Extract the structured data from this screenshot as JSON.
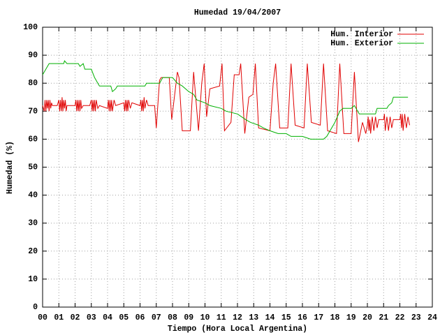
{
  "chart_data": {
    "type": "line",
    "title": "Humedad 19/04/2007",
    "x_label": "Tiempo (Hora Local Argentina)",
    "y_label": "Humedad (%)",
    "xlim": [
      0,
      24
    ],
    "ylim": [
      0,
      100
    ],
    "xticks": [
      {
        "value": 0,
        "label": "00"
      },
      {
        "value": 1,
        "label": "01"
      },
      {
        "value": 2,
        "label": "02"
      },
      {
        "value": 3,
        "label": "03"
      },
      {
        "value": 4,
        "label": "04"
      },
      {
        "value": 5,
        "label": "05"
      },
      {
        "value": 6,
        "label": "06"
      },
      {
        "value": 7,
        "label": "07"
      },
      {
        "value": 8,
        "label": "08"
      },
      {
        "value": 9,
        "label": "09"
      },
      10,
      11,
      12,
      13,
      14,
      15,
      16,
      17,
      18,
      19,
      20,
      21,
      22,
      23,
      24
    ],
    "yticks": [
      0,
      10,
      20,
      30,
      40,
      50,
      60,
      70,
      80,
      90,
      100
    ],
    "grid": true,
    "legend": "top-right",
    "series": [
      {
        "name": "Hum. Interior",
        "color": "#e00000",
        "x": [
          0,
          0.1,
          0.15,
          0.2,
          0.25,
          0.3,
          0.35,
          0.4,
          0.45,
          0.5,
          0.55,
          0.6,
          0.9,
          1,
          1.05,
          1.1,
          1.15,
          1.2,
          1.25,
          1.3,
          1.35,
          1.4,
          1.45,
          1.5,
          2,
          2.05,
          2.1,
          2.15,
          2.2,
          2.25,
          2.3,
          2.35,
          2.4,
          2.5,
          2.9,
          3,
          3.05,
          3.1,
          3.15,
          3.2,
          3.25,
          3.3,
          3.4,
          3.5,
          4,
          4.05,
          4.1,
          4.15,
          4.2,
          4.25,
          4.3,
          4.4,
          4.5,
          5,
          5.05,
          5.1,
          5.15,
          5.2,
          5.25,
          5.3,
          5.4,
          5.5,
          6,
          6.05,
          6.1,
          6.15,
          6.2,
          6.25,
          6.3,
          6.4,
          6.5,
          6.9,
          7,
          7.2,
          7.3,
          7.8,
          7.95,
          8.3,
          8.4,
          8.6,
          9.1,
          9.3,
          9.6,
          9.8,
          9.95,
          10.1,
          10.3,
          10.9,
          11.05,
          11.2,
          11.6,
          11.8,
          12.1,
          12.2,
          12.45,
          12.7,
          12.95,
          13.1,
          13.3,
          14,
          14.2,
          14.35,
          14.6,
          15.1,
          15.3,
          15.55,
          16.1,
          16.3,
          16.55,
          17.1,
          17.3,
          17.55,
          18.1,
          18.3,
          18.55,
          19,
          19.2,
          19.45,
          19.7,
          19.9,
          20,
          20.05,
          20.1,
          20.15,
          20.2,
          20.3,
          20.4,
          20.5,
          20.6,
          20.7,
          21,
          21.05,
          21.1,
          21.2,
          21.3,
          21.4,
          21.5,
          21.6,
          22,
          22.05,
          22.1,
          22.15,
          22.2,
          22.3,
          22.4,
          22.5,
          22.6
        ],
        "values": [
          72,
          70,
          74,
          70,
          74,
          71,
          74,
          70,
          74,
          71,
          73,
          72,
          72,
          74,
          70,
          74,
          70,
          75,
          70,
          74,
          71,
          74,
          70,
          72,
          72,
          74,
          70,
          74,
          70,
          74,
          70,
          74,
          71,
          72,
          72,
          74,
          70,
          74,
          70,
          74,
          70,
          74,
          71,
          72,
          71,
          74,
          70,
          74,
          70,
          74,
          70,
          74,
          72,
          73,
          70,
          74,
          70,
          74,
          70,
          74,
          71,
          73,
          72,
          74,
          70,
          74,
          70,
          75,
          71,
          74,
          72,
          72,
          64,
          81,
          82,
          82,
          67,
          84,
          82,
          63,
          63,
          84,
          63,
          80,
          87,
          68,
          78,
          79,
          87,
          63,
          66,
          83,
          83,
          87,
          62,
          75,
          76,
          87,
          64,
          63,
          80,
          87,
          64,
          64,
          87,
          65,
          64,
          87,
          66,
          65,
          87,
          63,
          62,
          87,
          62,
          62,
          84,
          59,
          66,
          62,
          65,
          68,
          63,
          67,
          62,
          68,
          63,
          68,
          64,
          67,
          67,
          69,
          63,
          68,
          63,
          68,
          64,
          67,
          67,
          69,
          64,
          69,
          63,
          69,
          64,
          68,
          65
        ]
      },
      {
        "name": "Hum. Exterior",
        "color": "#00b000",
        "x": [
          0,
          0.2,
          0.4,
          1.3,
          1.35,
          1.5,
          2.2,
          2.3,
          2.5,
          2.6,
          3,
          3.2,
          3.4,
          3.5,
          4.2,
          4.3,
          4.5,
          4.6,
          6.3,
          6.4,
          7.2,
          7.4,
          8,
          8.3,
          8.6,
          9,
          9.3,
          9.5,
          10,
          10.3,
          11,
          11.3,
          12,
          12.5,
          12.8,
          13.3,
          13.6,
          14,
          14.5,
          15,
          15.3,
          16,
          16.5,
          17.3,
          17.5,
          18,
          18.3,
          18.5,
          19,
          19.2,
          19.5,
          20.5,
          20.6,
          21.2,
          21.3,
          21.5,
          21.6,
          22.5
        ],
        "values": [
          83,
          85,
          87,
          87,
          88,
          87,
          87,
          86,
          87,
          85,
          85,
          82,
          80,
          79,
          79,
          77,
          78,
          79,
          79,
          80,
          80,
          82,
          82,
          80,
          79,
          77,
          76,
          74,
          73,
          72,
          71,
          70,
          69,
          67,
          66,
          65,
          64,
          63,
          62,
          62,
          61,
          61,
          60,
          60,
          61,
          66,
          70,
          71,
          71,
          72,
          69,
          69,
          71,
          71,
          72,
          73,
          75,
          75
        ]
      }
    ]
  }
}
